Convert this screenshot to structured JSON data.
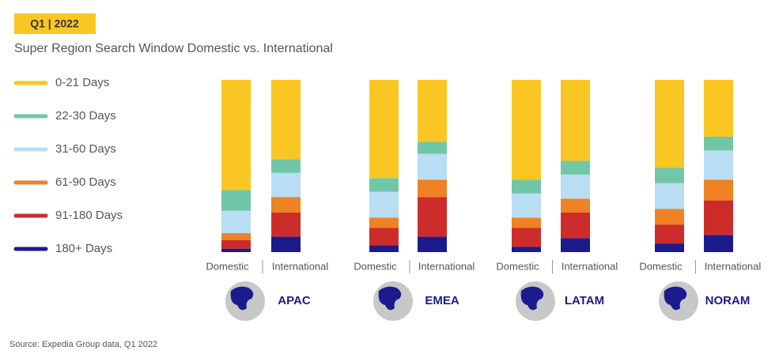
{
  "chart_data": {
    "type": "stacked_bar",
    "badge": "Q1 | 2022",
    "title": "Super Region Search Window Domestic vs. International",
    "source": "Source: Expedia Group data, Q1 2022",
    "groups": [
      "APAC",
      "EMEA",
      "LATAM",
      "NORAM"
    ],
    "categories": [
      "Domestic",
      "International",
      "Domestic",
      "International",
      "Domestic",
      "International",
      "Domestic",
      "International"
    ],
    "series": [
      {
        "name": "0-21 Days",
        "color": "#f9c623",
        "values": [
          64,
          46,
          57,
          36,
          58,
          47,
          51,
          33
        ]
      },
      {
        "name": "22-30 Days",
        "color": "#72c6a8",
        "values": [
          12,
          8,
          8,
          7,
          8,
          8,
          9,
          8
        ]
      },
      {
        "name": "31-60 Days",
        "color": "#b9ddf3",
        "values": [
          13,
          14,
          15,
          15,
          14,
          14,
          15,
          17
        ]
      },
      {
        "name": "61-90 Days",
        "color": "#ee8224",
        "values": [
          4,
          9,
          6,
          10,
          6,
          8,
          9,
          12
        ]
      },
      {
        "name": "91-180 Days",
        "color": "#cc2d2b",
        "values": [
          5,
          14,
          10,
          23,
          11,
          15,
          11,
          20
        ]
      },
      {
        "name": "180+ Days",
        "color": "#1b1b8e",
        "values": [
          2,
          9,
          4,
          9,
          3,
          8,
          5,
          10
        ]
      }
    ]
  }
}
